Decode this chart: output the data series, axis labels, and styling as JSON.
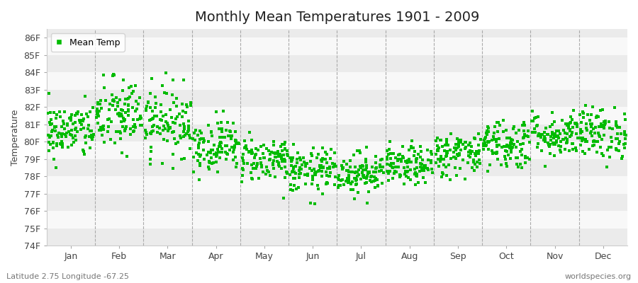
{
  "title": "Monthly Mean Temperatures 1901 - 2009",
  "ylabel": "Temperature",
  "xlabel_bottom_left": "Latitude 2.75 Longitude -67.25",
  "xlabel_bottom_right": "worldspecies.org",
  "ylim": [
    74,
    86.5
  ],
  "yticks": [
    74,
    75,
    76,
    77,
    78,
    79,
    80,
    81,
    82,
    83,
    84,
    85,
    86
  ],
  "ytick_labels": [
    "74F",
    "75F",
    "76F",
    "77F",
    "78F",
    "79F",
    "80F",
    "81F",
    "82F",
    "83F",
    "84F",
    "85F",
    "86F"
  ],
  "months": [
    "Jan",
    "Feb",
    "Mar",
    "Apr",
    "May",
    "Jun",
    "Jul",
    "Aug",
    "Sep",
    "Oct",
    "Nov",
    "Dec"
  ],
  "dot_color": "#00bb00",
  "dot_size": 5,
  "background_color": "#ffffff",
  "plot_bg_color": "#ffffff",
  "band_color_even": "#ebebeb",
  "band_color_odd": "#f8f8f8",
  "dashed_line_color": "#aaaaaa",
  "title_fontsize": 14,
  "axis_label_fontsize": 9,
  "tick_fontsize": 9,
  "seed": 42,
  "n_years": 109,
  "monthly_means": [
    80.6,
    81.5,
    81.2,
    79.8,
    79.0,
    78.3,
    78.2,
    78.6,
    79.3,
    79.9,
    80.4,
    80.5
  ],
  "monthly_stds": [
    0.8,
    1.1,
    1.0,
    0.75,
    0.65,
    0.65,
    0.6,
    0.55,
    0.65,
    0.75,
    0.65,
    0.75
  ]
}
